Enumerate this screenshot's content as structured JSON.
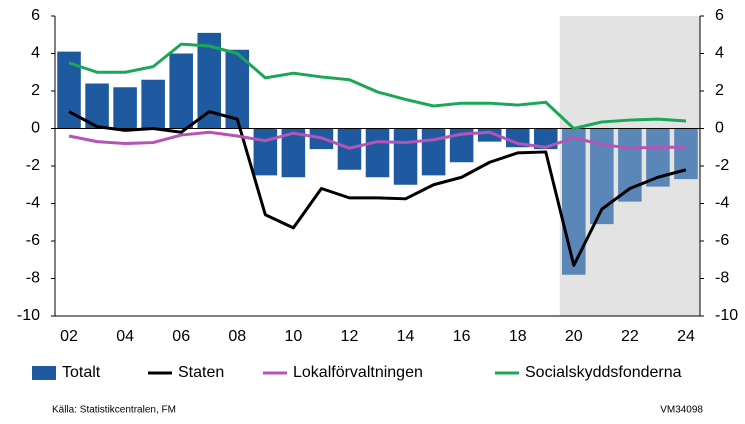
{
  "chart_data": {
    "type": "bar-line",
    "categories": [
      "02",
      null,
      "04",
      null,
      "06",
      null,
      "08",
      null,
      "10",
      null,
      "12",
      null,
      "14",
      null,
      "16",
      null,
      "18",
      null,
      "20",
      null,
      "22",
      null,
      "24"
    ],
    "series": [
      {
        "name": "Totalt",
        "type": "bar",
        "color": "#1f5aa0",
        "forecast_color": "#5b87b8",
        "values": [
          4.1,
          2.4,
          2.2,
          2.6,
          4.0,
          5.1,
          4.2,
          -2.5,
          -2.6,
          -1.1,
          -2.2,
          -2.6,
          -3.0,
          -2.5,
          -1.8,
          -0.7,
          -1.0,
          -1.1,
          -7.8,
          -5.1,
          -3.9,
          -3.1,
          -2.7
        ]
      },
      {
        "name": "Staten",
        "type": "line",
        "color": "#000000",
        "values": [
          0.9,
          0.1,
          -0.1,
          0.0,
          -0.2,
          0.9,
          0.5,
          -4.6,
          -5.3,
          -3.2,
          -3.7,
          -3.7,
          -3.75,
          -3.0,
          -2.6,
          -1.8,
          -1.3,
          -1.25,
          -7.3,
          -4.3,
          -3.2,
          -2.6,
          -2.2
        ]
      },
      {
        "name": "Lokalförvaltningen",
        "type": "line",
        "color": "#b455b6",
        "values": [
          -0.4,
          -0.7,
          -0.8,
          -0.75,
          -0.35,
          -0.2,
          -0.4,
          -0.65,
          -0.25,
          -0.5,
          -1.05,
          -0.7,
          -0.75,
          -0.6,
          -0.3,
          -0.2,
          -0.8,
          -1.0,
          -0.5,
          -0.85,
          -1.05,
          -1.0,
          -1.0
        ]
      },
      {
        "name": "Socialskyddsfonderna",
        "type": "line",
        "color": "#1aa757",
        "values": [
          3.5,
          3.0,
          3.0,
          3.3,
          4.5,
          4.4,
          4.0,
          2.7,
          2.95,
          2.75,
          2.6,
          1.95,
          1.55,
          1.2,
          1.35,
          1.35,
          1.25,
          1.4,
          0.0,
          0.35,
          0.45,
          0.5,
          0.4
        ]
      }
    ],
    "forecast_start": "20",
    "forecast_shade": "#e3e3e3",
    "ylim": [
      -10,
      6
    ],
    "yticks": [
      -10,
      -8,
      -6,
      -4,
      -2,
      0,
      2,
      4,
      6
    ],
    "y2lim": [
      -10,
      6
    ],
    "y2ticks": [
      -10,
      -8,
      -6,
      -4,
      -2,
      0,
      2,
      4,
      6
    ],
    "grid": false,
    "legend": "bottom",
    "source": "Källa: Statistikcentralen, FM",
    "code": "VM34098"
  }
}
